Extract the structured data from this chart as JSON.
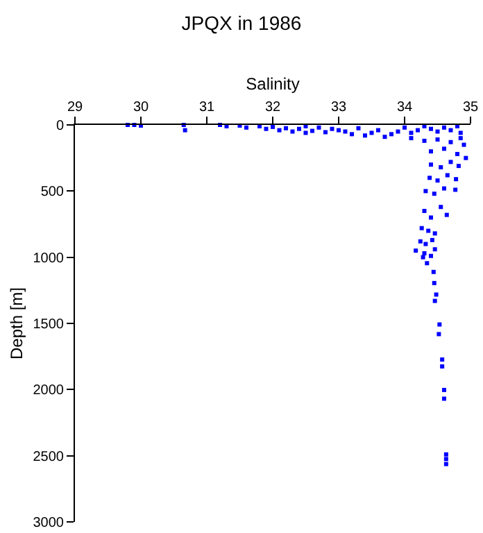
{
  "chart_data": {
    "type": "scatter",
    "title": "JPQX in 1986",
    "xlabel": "Salinity",
    "ylabel": "Depth [m]",
    "xlim": [
      29,
      35
    ],
    "xticks": [
      29,
      30,
      31,
      32,
      33,
      34,
      35
    ],
    "ylim": [
      3000,
      0
    ],
    "yticks": [
      0,
      500,
      1000,
      1500,
      2000,
      2500,
      3000
    ],
    "grid": false,
    "legend": false,
    "marker": "square",
    "series": [
      {
        "color": "#0000ff",
        "x": [
          29.8,
          29.9,
          30.0,
          30.65,
          30.67,
          31.2,
          31.3,
          31.5,
          31.6,
          31.8,
          31.9,
          32.0,
          32.1,
          32.2,
          32.3,
          32.4,
          32.5,
          32.5,
          32.6,
          32.7,
          32.8,
          32.9,
          33.0,
          33.1,
          33.2,
          33.3,
          33.4,
          33.5,
          33.6,
          33.7,
          33.8,
          33.9,
          34.0,
          34.1,
          34.2,
          34.3,
          34.4,
          34.5,
          34.6,
          34.7,
          34.8,
          34.85,
          34.1,
          34.3,
          34.5,
          34.7,
          34.85,
          34.9,
          34.4,
          34.6,
          34.8,
          34.93,
          34.4,
          34.55,
          34.7,
          34.82,
          34.38,
          34.5,
          34.65,
          34.78,
          34.32,
          34.45,
          34.6,
          34.77,
          34.3,
          34.4,
          34.55,
          34.64,
          34.26,
          34.36,
          34.46,
          34.24,
          34.32,
          34.42,
          34.17,
          34.3,
          34.46,
          34.28,
          34.4,
          34.34,
          34.44,
          34.45,
          34.48,
          34.46,
          34.53,
          34.52,
          34.57,
          34.57,
          34.6,
          34.6,
          34.63,
          34.63,
          34.63
        ],
        "values": [
          0,
          0,
          5,
          0,
          40,
          0,
          10,
          5,
          20,
          10,
          30,
          15,
          40,
          25,
          50,
          30,
          60,
          10,
          45,
          20,
          55,
          30,
          40,
          50,
          70,
          25,
          80,
          60,
          40,
          90,
          70,
          50,
          20,
          60,
          40,
          10,
          30,
          50,
          20,
          40,
          10,
          60,
          100,
          120,
          110,
          130,
          100,
          150,
          200,
          180,
          220,
          250,
          300,
          320,
          280,
          310,
          400,
          420,
          380,
          410,
          500,
          520,
          480,
          490,
          650,
          700,
          620,
          680,
          780,
          800,
          820,
          880,
          900,
          870,
          950,
          970,
          940,
          1000,
          990,
          1045,
          1111,
          1195,
          1282,
          1330,
          1508,
          1581,
          1773,
          1825,
          2003,
          2069,
          2490,
          2525,
          2563
        ]
      }
    ]
  }
}
